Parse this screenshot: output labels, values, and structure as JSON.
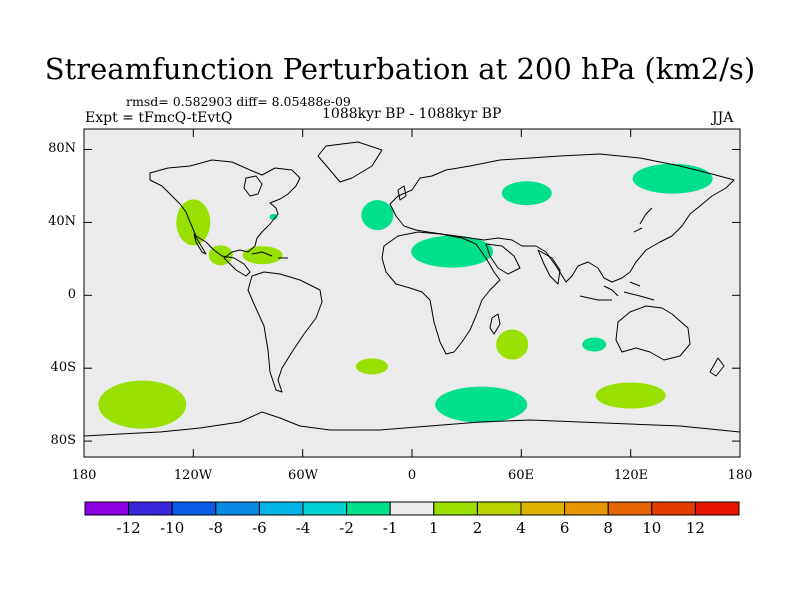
{
  "title": "Streamfunction Perturbation at 200 hPa (km2/s)",
  "stats": "rmsd= 0.582903 diff= 8.05488e-09",
  "experiment": "Expt = tFmcQ-tEvtQ",
  "period": "1088kyr BP - 1088kyr BP",
  "season": "JJA",
  "map": {
    "lat_labels": [
      "80N",
      "40N",
      "0",
      "40S",
      "80S"
    ],
    "lon_labels": [
      "180",
      "120W",
      "60W",
      "0",
      "60E",
      "120E",
      "180"
    ],
    "background_color": "#ebebeb",
    "anomalies": [
      {
        "name": "north-america-west",
        "lon": -120,
        "lat": 40,
        "color": "#99e000",
        "value_class": "1 to 2"
      },
      {
        "name": "mexico",
        "lon": -105,
        "lat": 22,
        "color": "#99e000",
        "value_class": "1 to 2"
      },
      {
        "name": "gulf",
        "lon": -82,
        "lat": 22,
        "color": "#99e000",
        "value_class": "1 to 2"
      },
      {
        "name": "us-east-small",
        "lon": -76,
        "lat": 43,
        "color": "#00e08c",
        "value_class": "-2 to -1"
      },
      {
        "name": "north-atlantic",
        "lon": -19,
        "lat": 44,
        "color": "#00e08c",
        "value_class": "-2 to -1"
      },
      {
        "name": "sahara",
        "lon": 22,
        "lat": 24,
        "color": "#00e08c",
        "value_class": "-2 to -1"
      },
      {
        "name": "russia-west",
        "lon": 63,
        "lat": 56,
        "color": "#00e08c",
        "value_class": "-2 to -1"
      },
      {
        "name": "siberia-east",
        "lon": 143,
        "lat": 64,
        "color": "#00e08c",
        "value_class": "-2 to -1"
      },
      {
        "name": "madagascar-east",
        "lon": 55,
        "lat": -27,
        "color": "#99e000",
        "value_class": "1 to 2"
      },
      {
        "name": "indian-ocean",
        "lon": 100,
        "lat": -27,
        "color": "#00e08c",
        "value_class": "-2 to -1"
      },
      {
        "name": "south-atlantic",
        "lon": -22,
        "lat": -39,
        "color": "#99e000",
        "value_class": "1 to 2"
      },
      {
        "name": "south-pacific",
        "lon": -148,
        "lat": -60,
        "color": "#99e000",
        "value_class": "1 to 2"
      },
      {
        "name": "southern-ocean-africa",
        "lon": 38,
        "lat": -60,
        "color": "#00e08c",
        "value_class": "-2 to -1"
      },
      {
        "name": "southern-ocean-australia",
        "lon": 120,
        "lat": -55,
        "color": "#99e000",
        "value_class": "1 to 2"
      }
    ]
  },
  "colorbar": {
    "colors": [
      "#8c00e6",
      "#3c28dc",
      "#0a5ae6",
      "#0a8ce6",
      "#00b4e6",
      "#00d2d2",
      "#00e08c",
      "#ebebeb",
      "#99e000",
      "#b9d200",
      "#dcb400",
      "#e69600",
      "#e66400",
      "#e63c00",
      "#e61400"
    ],
    "labels": [
      "-12",
      "-10",
      "-8",
      "-6",
      "-4",
      "-2",
      "-1",
      "1",
      "2",
      "4",
      "6",
      "8",
      "10",
      "12"
    ]
  }
}
